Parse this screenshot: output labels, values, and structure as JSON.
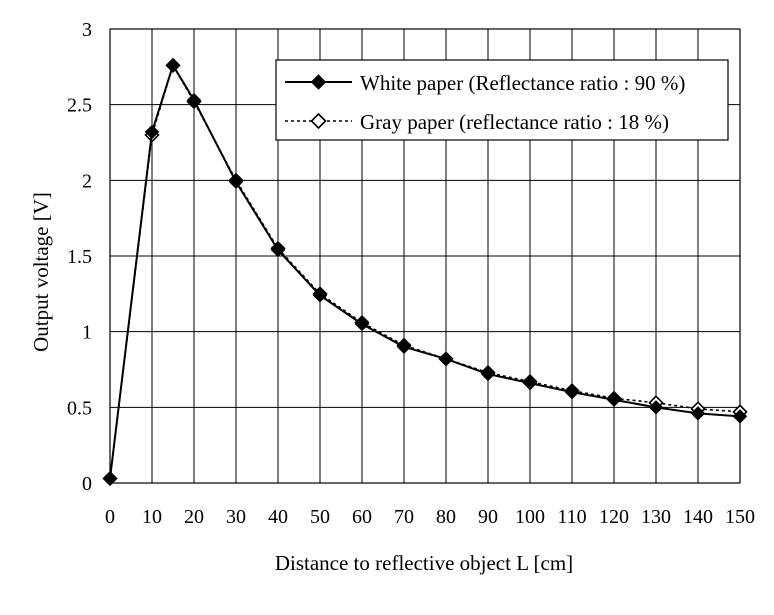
{
  "chart_data": {
    "type": "line",
    "title": "",
    "xlabel": "Distance to reflective object L [cm]",
    "ylabel": "Output voltage [V]",
    "xlim": [
      0,
      150
    ],
    "ylim": [
      0,
      3
    ],
    "xticks": [
      "0",
      "10",
      "20",
      "30",
      "40",
      "50",
      "60",
      "70",
      "80",
      "90",
      "100",
      "110",
      "120",
      "130",
      "140",
      "150"
    ],
    "yticks": [
      "0",
      "0.5",
      "1",
      "1.5",
      "2",
      "2.5",
      "3"
    ],
    "grid": true,
    "legend_position": "top-right",
    "series": [
      {
        "name": "White paper (Reflectance ratio : 90 %)",
        "line_style": "solid",
        "marker": "filled-diamond",
        "x": [
          0,
          10,
          15,
          20,
          30,
          40,
          50,
          60,
          70,
          80,
          90,
          100,
          110,
          120,
          130,
          140,
          150
        ],
        "y": [
          0.03,
          2.32,
          2.76,
          2.53,
          1.99,
          1.54,
          1.24,
          1.05,
          0.9,
          0.82,
          0.72,
          0.66,
          0.6,
          0.55,
          0.5,
          0.46,
          0.44
        ]
      },
      {
        "name": "Gray paper (reflectance ratio : 18 %)",
        "line_style": "dotted",
        "marker": "hollow-diamond",
        "x": [
          0,
          10,
          15,
          20,
          30,
          40,
          50,
          60,
          70,
          80,
          90,
          100,
          110,
          120,
          130,
          140,
          150
        ],
        "y": [
          0.03,
          2.3,
          2.76,
          2.52,
          2.0,
          1.55,
          1.25,
          1.06,
          0.91,
          0.82,
          0.73,
          0.67,
          0.61,
          0.56,
          0.53,
          0.49,
          0.47
        ]
      }
    ]
  }
}
